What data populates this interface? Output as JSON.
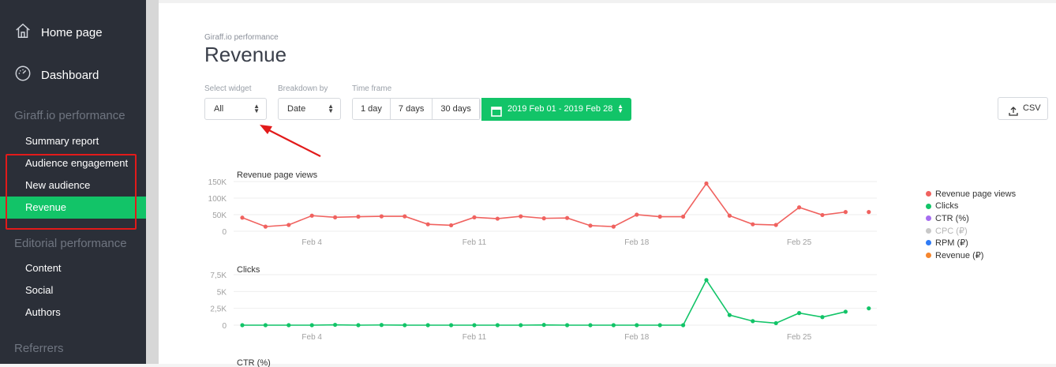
{
  "sidebar": {
    "home_label": "Home page",
    "dashboard_label": "Dashboard",
    "section1": "Giraff.io performance",
    "items1": [
      "Summary report",
      "Audience engagement",
      "New audience",
      "Revenue"
    ],
    "section2": "Editorial performance",
    "items2": [
      "Content",
      "Social",
      "Authors"
    ],
    "section3": "Referrers"
  },
  "header": {
    "breadcrumb": "Giraff.io performance",
    "title": "Revenue"
  },
  "controls": {
    "widget_label": "Select widget",
    "widget_value": "All",
    "breakdown_label": "Breakdown by",
    "breakdown_value": "Date",
    "timeframe_label": "Time frame",
    "timeframe_options": [
      "1 day",
      "7 days",
      "30 days"
    ],
    "date_range": "2019 Feb 01 - 2019 Feb 28",
    "csv_label": "CSV"
  },
  "colors": {
    "brand_green": "#12c468",
    "sidebar_bg": "#2b2f38",
    "annotation_red": "#e21a1a"
  },
  "legend": [
    {
      "name": "Revenue page views",
      "color": "#f0625f",
      "muted": false
    },
    {
      "name": "Clicks",
      "color": "#12c468",
      "muted": false
    },
    {
      "name": "CTR (%)",
      "color": "#a66df0",
      "muted": false
    },
    {
      "name": "CPC (₽)",
      "color": "#c8c8c8",
      "muted": true
    },
    {
      "name": "RPM (₽)",
      "color": "#2f7bf5",
      "muted": false
    },
    {
      "name": "Revenue (₽)",
      "color": "#f5862e",
      "muted": false
    }
  ],
  "chart_data": [
    {
      "type": "line",
      "title": "Revenue page views",
      "color": "#f0625f",
      "x_ticks": [
        "Feb 4",
        "Feb 11",
        "Feb 18",
        "Feb 25"
      ],
      "x_tick_days": [
        4,
        11,
        18,
        25
      ],
      "y_ticks": [
        "150K",
        "100K",
        "50K",
        "0"
      ],
      "ylim": [
        0,
        150000
      ],
      "days": [
        1,
        2,
        3,
        4,
        5,
        6,
        7,
        8,
        9,
        10,
        11,
        12,
        13,
        14,
        15,
        16,
        17,
        18,
        19,
        20,
        21,
        22,
        23,
        24,
        25,
        26,
        27,
        28
      ],
      "values": [
        41000,
        14000,
        19000,
        47000,
        42000,
        44000,
        45000,
        45000,
        21000,
        18000,
        42000,
        38000,
        45000,
        39000,
        40000,
        17000,
        14000,
        50000,
        44000,
        44000,
        144000,
        47000,
        21000,
        19000,
        72000,
        49000,
        58000,
        58000
      ],
      "gap_before_last": true
    },
    {
      "type": "line",
      "title": "Clicks",
      "color": "#12c468",
      "x_ticks": [
        "Feb 4",
        "Feb 11",
        "Feb 18",
        "Feb 25"
      ],
      "x_tick_days": [
        4,
        11,
        18,
        25
      ],
      "y_ticks": [
        "7,5K",
        "5K",
        "2,5K",
        "0"
      ],
      "ylim": [
        0,
        7500
      ],
      "days": [
        1,
        2,
        3,
        4,
        5,
        6,
        7,
        8,
        9,
        10,
        11,
        12,
        13,
        14,
        15,
        16,
        17,
        18,
        19,
        20,
        21,
        22,
        23,
        24,
        25,
        26,
        27,
        28
      ],
      "values": [
        0,
        0,
        0,
        0,
        50,
        0,
        30,
        0,
        0,
        0,
        0,
        0,
        0,
        40,
        0,
        0,
        0,
        0,
        0,
        0,
        6700,
        1500,
        600,
        300,
        1800,
        1200,
        2000,
        2500
      ],
      "gap_before_last": true
    }
  ],
  "next_chart_title": "CTR (%)"
}
